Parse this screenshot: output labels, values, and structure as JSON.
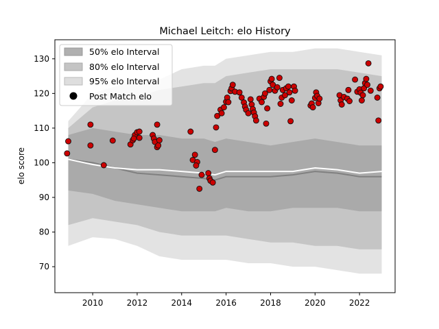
{
  "chart_data": {
    "type": "scatter",
    "title": "Michael Leitch: elo History",
    "xlabel": "",
    "ylabel": "elo score",
    "xlim": [
      2008.3,
      2023.6
    ],
    "ylim": [
      62.5,
      135.5
    ],
    "xticks": [
      2010,
      2012,
      2014,
      2016,
      2018,
      2020,
      2022
    ],
    "yticks": [
      70,
      80,
      90,
      100,
      110,
      120,
      130
    ],
    "grid": false,
    "legend_position": "top-left",
    "legend": [
      {
        "label": "50% elo Interval",
        "color": "#b0b0b0"
      },
      {
        "label": "80% elo Interval",
        "color": "#c4c4c4"
      },
      {
        "label": "95% elo Interval",
        "color": "#dedede"
      },
      {
        "label": "Post Match elo",
        "color": "#000000"
      }
    ],
    "colors": {
      "marker_fill": "#cc0000",
      "marker_edge": "#111111",
      "highlight": "#ff9900",
      "median_line": "#808080",
      "mean_line": "#ffffff"
    },
    "band_x": [
      2008.9,
      2010.0,
      2011.0,
      2012.0,
      2013.0,
      2014.0,
      2015.0,
      2015.5,
      2016.0,
      2017.0,
      2018.0,
      2019.0,
      2020.0,
      2021.0,
      2022.0,
      2023.0
    ],
    "band_95_upper": [
      112,
      120,
      122,
      124,
      124,
      127,
      128,
      128,
      130,
      131,
      132,
      132,
      133,
      133,
      132,
      131
    ],
    "band_95_lower": [
      76,
      78.5,
      78,
      76,
      73,
      72,
      72,
      72,
      72,
      71,
      71,
      70,
      70,
      69,
      68,
      68
    ],
    "band_80_upper": [
      110,
      116,
      118,
      119,
      121,
      122,
      123,
      123,
      125,
      126,
      127,
      127,
      127,
      127,
      126,
      125
    ],
    "band_80_lower": [
      82,
      84,
      83,
      82,
      80,
      79,
      79,
      79,
      79,
      78,
      77,
      77,
      76,
      76,
      75,
      75
    ],
    "band_50_upper": [
      108,
      110,
      109,
      108,
      108,
      107,
      107,
      106,
      107,
      106,
      105,
      106,
      107,
      106,
      105,
      105
    ],
    "band_50_lower": [
      92,
      91,
      89,
      88,
      87,
      86,
      86,
      86,
      87,
      86,
      86,
      87,
      87,
      87,
      86,
      86
    ],
    "median_line": [
      101,
      100,
      98.5,
      97,
      96.5,
      96,
      95.5,
      95,
      96,
      96,
      96,
      96.5,
      97.5,
      97,
      96,
      96
    ],
    "mean_line": [
      101,
      99.5,
      98.5,
      98,
      98,
      97.5,
      97,
      96.5,
      97.5,
      97.5,
      97.5,
      97.5,
      98.5,
      98,
      97,
      97.5
    ],
    "series": [
      {
        "name": "Post Match elo",
        "points": [
          [
            2008.9,
            106.2
          ],
          [
            2008.85,
            102.7
          ],
          [
            2009.9,
            111
          ],
          [
            2009.9,
            105
          ],
          [
            2010.5,
            99.3
          ],
          [
            2010.9,
            106.4
          ],
          [
            2011.7,
            105.3
          ],
          [
            2011.8,
            106.5
          ],
          [
            2011.9,
            108
          ],
          [
            2012.0,
            108.8
          ],
          [
            2012.1,
            107.2
          ],
          [
            2012.1,
            109
          ],
          [
            2011.85,
            107
          ],
          [
            2012.7,
            108
          ],
          [
            2012.75,
            107
          ],
          [
            2012.8,
            106
          ],
          [
            2012.9,
            104.5
          ],
          [
            2012.9,
            111
          ],
          [
            2013.0,
            106.5
          ],
          [
            2012.95,
            105
          ],
          [
            2014.4,
            109
          ],
          [
            2014.5,
            100.8
          ],
          [
            2014.6,
            102.3
          ],
          [
            2014.7,
            100.2
          ],
          [
            2014.65,
            99.2
          ],
          [
            2014.8,
            92.5
          ],
          [
            2014.9,
            96.5
          ],
          [
            2015.2,
            97
          ],
          [
            2015.25,
            95.5
          ],
          [
            2015.3,
            94.8
          ],
          [
            2015.4,
            94.3
          ],
          [
            2015.5,
            103.7
          ],
          [
            2015.55,
            110.2
          ],
          [
            2015.6,
            113.5
          ],
          [
            2015.75,
            115.3
          ],
          [
            2015.8,
            114.3
          ],
          [
            2015.9,
            116
          ],
          [
            2016.0,
            117.6
          ],
          [
            2016.05,
            118.8
          ],
          [
            2016.1,
            117.5
          ],
          [
            2016.2,
            120.7
          ],
          [
            2016.25,
            121.5
          ],
          [
            2016.3,
            122.5
          ],
          [
            2016.4,
            120.5
          ],
          [
            2016.6,
            120.3
          ],
          [
            2016.7,
            118.8
          ],
          [
            2016.8,
            117.4
          ],
          [
            2016.85,
            116.2
          ],
          [
            2016.9,
            115.3
          ],
          [
            2017.0,
            114.3
          ],
          [
            2017.1,
            118.3
          ],
          [
            2017.15,
            116.8
          ],
          [
            2017.2,
            115.5
          ],
          [
            2017.25,
            114.5
          ],
          [
            2017.3,
            113.4
          ],
          [
            2017.35,
            112.2
          ],
          [
            2017.5,
            118.5
          ],
          [
            2017.6,
            117.5
          ],
          [
            2017.7,
            119
          ],
          [
            2017.75,
            120
          ],
          [
            2017.8,
            111.3
          ],
          [
            2017.85,
            115.7
          ],
          [
            2017.95,
            121
          ],
          [
            2018.0,
            123.5
          ],
          [
            2018.05,
            124.2
          ],
          [
            2018.1,
            122.5
          ],
          [
            2018.2,
            120.8
          ],
          [
            2018.3,
            121.8
          ],
          [
            2018.4,
            124.5
          ],
          [
            2018.45,
            117
          ],
          [
            2018.5,
            118.8
          ],
          [
            2018.55,
            121
          ],
          [
            2018.65,
            119.5
          ],
          [
            2018.7,
            121.5
          ],
          [
            2018.8,
            122
          ],
          [
            2018.85,
            120.3
          ],
          [
            2018.9,
            112
          ],
          [
            2018.95,
            118
          ],
          [
            2019.05,
            122
          ],
          [
            2019.1,
            120.8
          ],
          [
            2019.8,
            116.5
          ],
          [
            2019.85,
            117.1
          ],
          [
            2019.9,
            116
          ],
          [
            2020.0,
            118.7
          ],
          [
            2020.05,
            120.3
          ],
          [
            2020.1,
            119.3
          ],
          [
            2020.15,
            117.2
          ],
          [
            2020.2,
            118.5
          ],
          [
            2021.1,
            119.5
          ],
          [
            2021.15,
            118
          ],
          [
            2021.2,
            116.8
          ],
          [
            2021.3,
            119
          ],
          [
            2021.45,
            118.5
          ],
          [
            2021.5,
            121
          ],
          [
            2021.55,
            117.8
          ],
          [
            2021.8,
            124
          ],
          [
            2021.9,
            120.5
          ],
          [
            2022.0,
            121.2
          ],
          [
            2022.05,
            120.2
          ],
          [
            2022.1,
            118
          ],
          [
            2022.15,
            119.5
          ],
          [
            2022.2,
            121.5
          ],
          [
            2022.25,
            123
          ],
          [
            2022.3,
            124.2
          ],
          [
            2022.35,
            122.5
          ],
          [
            2022.4,
            128.7
          ],
          [
            2022.5,
            120.8
          ],
          [
            2022.8,
            118.8
          ],
          [
            2022.85,
            112.2
          ],
          [
            2022.9,
            121.5
          ],
          [
            2022.95,
            122
          ]
        ]
      }
    ]
  }
}
